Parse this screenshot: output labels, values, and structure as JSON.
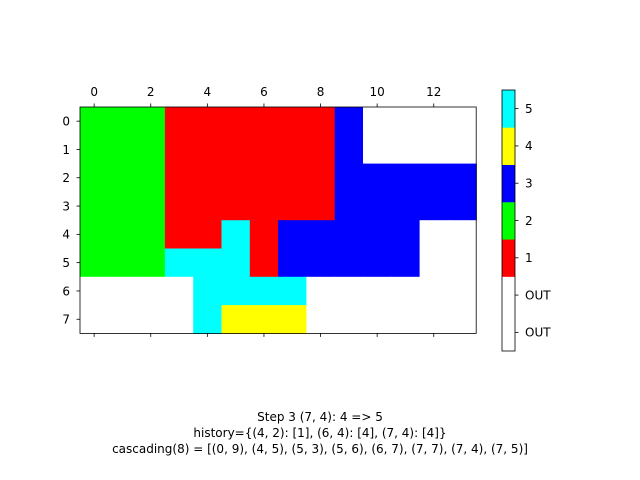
{
  "chart_data": {
    "type": "heatmap",
    "x_ticks": [
      0,
      2,
      4,
      6,
      8,
      10,
      12
    ],
    "y_ticks": [
      0,
      1,
      2,
      3,
      4,
      5,
      6,
      7
    ],
    "grid": [
      [
        2,
        2,
        2,
        1,
        1,
        1,
        1,
        1,
        1,
        3,
        0,
        0,
        0,
        0
      ],
      [
        2,
        2,
        2,
        1,
        1,
        1,
        1,
        1,
        1,
        3,
        0,
        0,
        0,
        0
      ],
      [
        2,
        2,
        2,
        1,
        1,
        1,
        1,
        1,
        1,
        3,
        3,
        3,
        3,
        3
      ],
      [
        2,
        2,
        2,
        1,
        1,
        1,
        1,
        1,
        1,
        3,
        3,
        3,
        3,
        3
      ],
      [
        2,
        2,
        2,
        1,
        1,
        5,
        1,
        3,
        3,
        3,
        3,
        3,
        0,
        0
      ],
      [
        2,
        2,
        2,
        5,
        5,
        5,
        1,
        3,
        3,
        3,
        3,
        3,
        0,
        0
      ],
      [
        0,
        0,
        0,
        0,
        5,
        5,
        5,
        5,
        0,
        0,
        0,
        0,
        0,
        0
      ],
      [
        0,
        0,
        0,
        0,
        5,
        4,
        4,
        4,
        0,
        0,
        0,
        0,
        0,
        0
      ]
    ],
    "colorbar": {
      "levels": [
        {
          "value": -1,
          "color": "#ffffff",
          "label": "OUT"
        },
        {
          "value": 0,
          "color": "#ffffff",
          "label": "OUT"
        },
        {
          "value": 1,
          "color": "#ff0000",
          "label": "1"
        },
        {
          "value": 2,
          "color": "#00ff00",
          "label": "2"
        },
        {
          "value": 3,
          "color": "#0000ff",
          "label": "3"
        },
        {
          "value": 4,
          "color": "#ffff00",
          "label": "4"
        },
        {
          "value": 5,
          "color": "#00ffff",
          "label": "5"
        }
      ]
    },
    "annotations": [
      "Step 3  (7, 4): 4 => 5",
      "history={(4, 2): [1], (6, 4): [4], (7, 4): [4]}",
      "cascading(8) = [(0, 9), (4, 5), (5, 3), (5, 6), (6, 7), (7, 7), (7, 4), (7, 5)]"
    ]
  }
}
